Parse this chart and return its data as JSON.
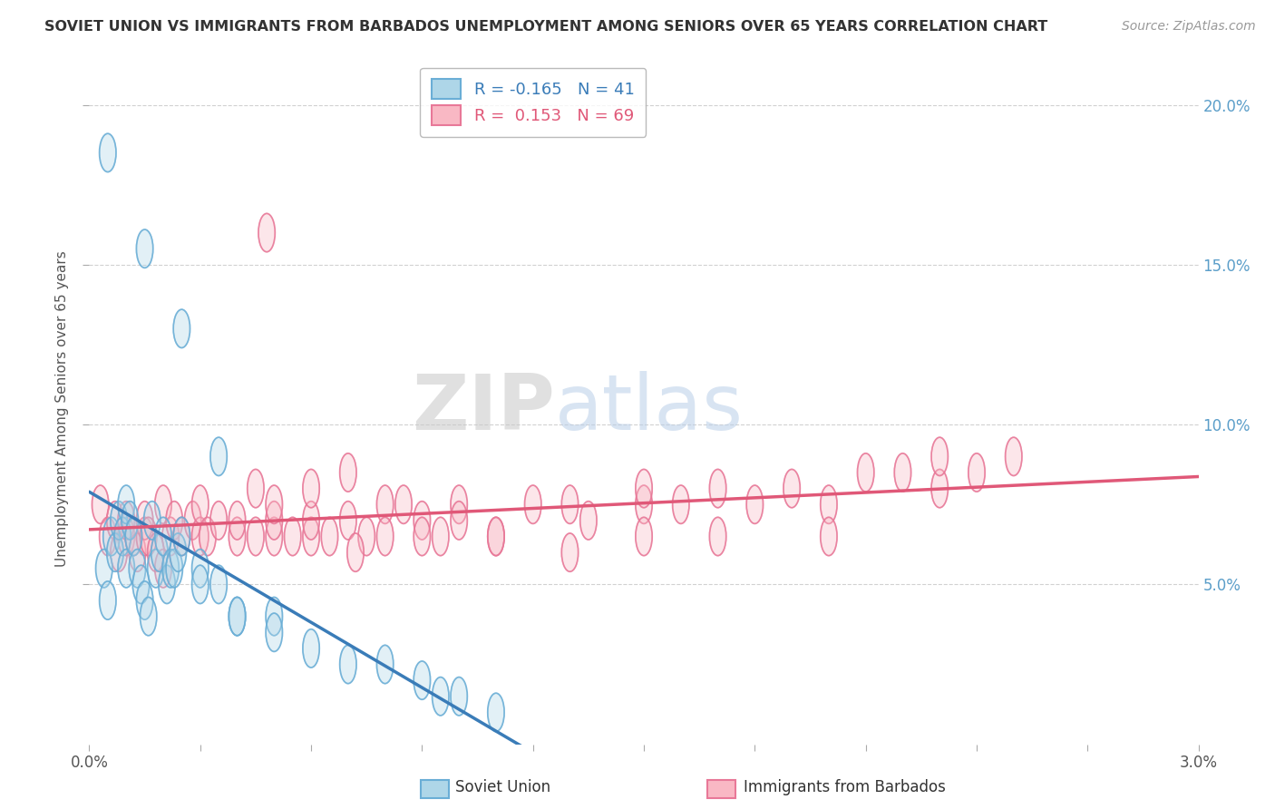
{
  "title": "SOVIET UNION VS IMMIGRANTS FROM BARBADOS UNEMPLOYMENT AMONG SENIORS OVER 65 YEARS CORRELATION CHART",
  "source": "Source: ZipAtlas.com",
  "ylabel": "Unemployment Among Seniors over 65 years",
  "xlim": [
    0.0,
    0.03
  ],
  "ylim": [
    0.0,
    0.21
  ],
  "yticks_right": [
    0.05,
    0.1,
    0.15,
    0.2
  ],
  "ytick_labels_right": [
    "5.0%",
    "10.0%",
    "15.0%",
    "20.0%"
  ],
  "legend_blue_R": "-0.165",
  "legend_blue_N": "41",
  "legend_pink_R": "0.153",
  "legend_pink_N": "69",
  "blue_fill": "#AED6E8",
  "blue_edge": "#6AAED6",
  "pink_fill": "#F9B8C4",
  "pink_edge": "#E87898",
  "trend_blue_color": "#3A7CB8",
  "trend_pink_color": "#E05878",
  "watermark_zip": "ZIP",
  "watermark_atlas": "atlas",
  "blue_series_label": "Soviet Union",
  "pink_series_label": "Immigrants from Barbados",
  "background_color": "#FFFFFF",
  "grid_color": "#CCCCCC",
  "right_axis_color": "#5B9EC9",
  "blue_x": [
    0.0004,
    0.0005,
    0.0006,
    0.0007,
    0.0008,
    0.0009,
    0.001,
    0.001,
    0.0011,
    0.0012,
    0.0013,
    0.0014,
    0.0015,
    0.0016,
    0.0017,
    0.0018,
    0.0019,
    0.002,
    0.0021,
    0.0022,
    0.0023,
    0.0024,
    0.0025,
    0.003,
    0.003,
    0.0035,
    0.004,
    0.004,
    0.005,
    0.005,
    0.006,
    0.007,
    0.008,
    0.009,
    0.0095,
    0.01,
    0.011,
    0.0005,
    0.0015,
    0.0025,
    0.0035
  ],
  "blue_y": [
    0.055,
    0.045,
    0.065,
    0.06,
    0.07,
    0.065,
    0.055,
    0.075,
    0.07,
    0.065,
    0.055,
    0.05,
    0.045,
    0.04,
    0.07,
    0.055,
    0.06,
    0.065,
    0.05,
    0.055,
    0.055,
    0.06,
    0.065,
    0.055,
    0.05,
    0.05,
    0.04,
    0.04,
    0.04,
    0.035,
    0.03,
    0.025,
    0.025,
    0.02,
    0.015,
    0.015,
    0.01,
    0.185,
    0.155,
    0.13,
    0.09
  ],
  "pink_x": [
    0.0003,
    0.0005,
    0.0007,
    0.0008,
    0.001,
    0.001,
    0.0012,
    0.0013,
    0.0015,
    0.0015,
    0.0016,
    0.0018,
    0.002,
    0.002,
    0.0022,
    0.0023,
    0.0025,
    0.0028,
    0.003,
    0.003,
    0.0032,
    0.0035,
    0.004,
    0.004,
    0.0045,
    0.005,
    0.005,
    0.006,
    0.006,
    0.0065,
    0.007,
    0.0075,
    0.008,
    0.008,
    0.009,
    0.009,
    0.01,
    0.01,
    0.011,
    0.012,
    0.013,
    0.0135,
    0.015,
    0.015,
    0.016,
    0.017,
    0.018,
    0.019,
    0.02,
    0.021,
    0.022,
    0.023,
    0.024,
    0.0048,
    0.007,
    0.0085,
    0.0045,
    0.005,
    0.006,
    0.0055,
    0.0072,
    0.0095,
    0.011,
    0.013,
    0.015,
    0.017,
    0.02,
    0.023,
    0.025
  ],
  "pink_y": [
    0.075,
    0.065,
    0.07,
    0.06,
    0.065,
    0.07,
    0.065,
    0.06,
    0.065,
    0.07,
    0.065,
    0.06,
    0.055,
    0.075,
    0.065,
    0.07,
    0.065,
    0.07,
    0.065,
    0.075,
    0.065,
    0.07,
    0.065,
    0.07,
    0.065,
    0.065,
    0.07,
    0.065,
    0.07,
    0.065,
    0.07,
    0.065,
    0.075,
    0.065,
    0.07,
    0.065,
    0.075,
    0.07,
    0.065,
    0.075,
    0.075,
    0.07,
    0.075,
    0.08,
    0.075,
    0.08,
    0.075,
    0.08,
    0.075,
    0.085,
    0.085,
    0.08,
    0.085,
    0.16,
    0.085,
    0.075,
    0.08,
    0.075,
    0.08,
    0.065,
    0.06,
    0.065,
    0.065,
    0.06,
    0.065,
    0.065,
    0.065,
    0.09,
    0.09
  ]
}
